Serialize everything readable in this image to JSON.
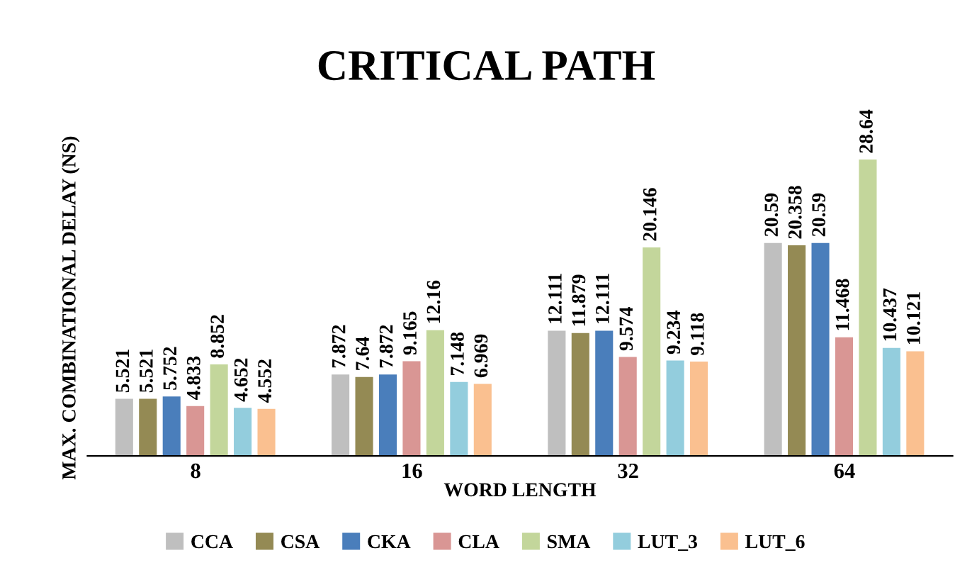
{
  "chart_data": {
    "type": "bar",
    "title": "CRITICAL PATH",
    "xlabel": "WORD LENGTH",
    "ylabel": "MAX. COMBINATIONAL DELAY (NS)",
    "categories": [
      "8",
      "16",
      "32",
      "64"
    ],
    "series": [
      {
        "name": "CCA",
        "color": "#bfbfbf",
        "values": [
          5.521,
          7.872,
          12.111,
          20.59
        ]
      },
      {
        "name": "CSA",
        "color": "#948a54",
        "values": [
          5.521,
          7.64,
          11.879,
          20.358
        ]
      },
      {
        "name": "CKA",
        "color": "#4a7ebb",
        "values": [
          5.752,
          7.872,
          12.111,
          20.59
        ]
      },
      {
        "name": "CLA",
        "color": "#d99694",
        "values": [
          4.833,
          9.165,
          9.574,
          11.468
        ]
      },
      {
        "name": "SMA",
        "color": "#c3d69b",
        "values": [
          8.852,
          12.16,
          20.146,
          28.64
        ]
      },
      {
        "name": "LUT_3",
        "color": "#93cddd",
        "values": [
          4.652,
          7.148,
          9.234,
          10.437
        ]
      },
      {
        "name": "LUT_6",
        "color": "#fac090",
        "values": [
          4.552,
          6.969,
          9.118,
          10.121
        ]
      }
    ],
    "data_labels": true,
    "legend": "bottom",
    "grid": false
  }
}
